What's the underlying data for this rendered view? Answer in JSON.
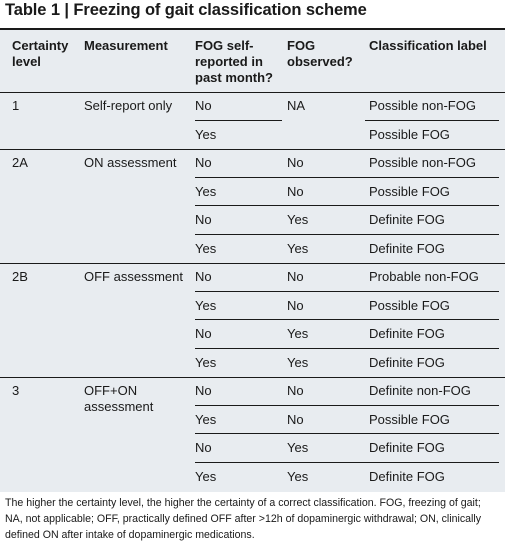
{
  "title": "Table 1 | Freezing of gait classification scheme",
  "headers": {
    "certainty": "Certainty level",
    "measurement": "Measurement",
    "self_reported": "FOG self-reported in past month?",
    "observed": "FOG observed?",
    "label": "Classification label"
  },
  "groups": [
    {
      "level": "1",
      "measurement": "Self-report only",
      "rows": [
        {
          "self_reported": "No",
          "observed": "NA",
          "label": "Possible non-FOG"
        },
        {
          "self_reported": "Yes",
          "observed": "",
          "label": "Possible FOG"
        }
      ]
    },
    {
      "level": "2A",
      "measurement": "ON assessment",
      "rows": [
        {
          "self_reported": "No",
          "observed": "No",
          "label": "Possible non-FOG"
        },
        {
          "self_reported": "Yes",
          "observed": "No",
          "label": "Possible FOG"
        },
        {
          "self_reported": "No",
          "observed": "Yes",
          "label": "Definite FOG"
        },
        {
          "self_reported": "Yes",
          "observed": "Yes",
          "label": "Definite FOG"
        }
      ]
    },
    {
      "level": "2B",
      "measurement": "OFF assessment",
      "rows": [
        {
          "self_reported": "No",
          "observed": "No",
          "label": "Probable non-FOG"
        },
        {
          "self_reported": "Yes",
          "observed": "No",
          "label": "Possible FOG"
        },
        {
          "self_reported": "No",
          "observed": "Yes",
          "label": "Definite FOG"
        },
        {
          "self_reported": "Yes",
          "observed": "Yes",
          "label": "Definite FOG"
        }
      ]
    },
    {
      "level": "3",
      "measurement": "OFF+ON assessment",
      "rows": [
        {
          "self_reported": "No",
          "observed": "No",
          "label": "Definite non-FOG"
        },
        {
          "self_reported": "Yes",
          "observed": "No",
          "label": "Possible FOG"
        },
        {
          "self_reported": "No",
          "observed": "Yes",
          "label": "Definite FOG"
        },
        {
          "self_reported": "Yes",
          "observed": "Yes",
          "label": "Definite FOG"
        }
      ]
    }
  ],
  "footnote": "The higher the certainty level, the higher the certainty of a correct classification. FOG, freezing of gait; NA, not applicable; OFF, practically defined OFF after >12h of dopaminergic withdrawal; ON, clinically defined ON after intake of dopaminergic medications."
}
